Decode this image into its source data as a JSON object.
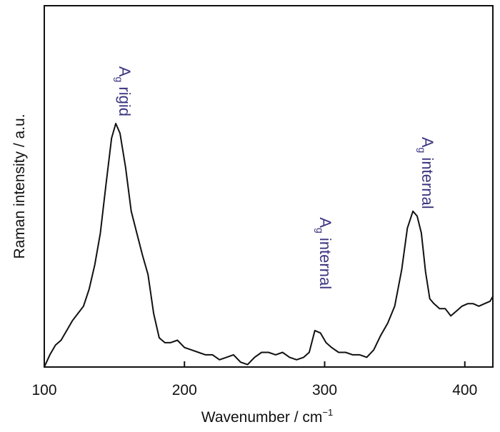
{
  "chart_data": {
    "type": "line",
    "title": "",
    "xlabel": "Wavenumber / cm",
    "xlabel_superscript": "−1",
    "ylabel": "Raman intensity / a.u.",
    "xlim": [
      100,
      420
    ],
    "ylim": [
      0,
      100
    ],
    "y_ticks_labeled": false,
    "grid": false,
    "x_ticks": [
      {
        "value": 100,
        "label": "100"
      },
      {
        "value": 200,
        "label": "200"
      },
      {
        "value": 300,
        "label": "300"
      },
      {
        "value": 400,
        "label": "400"
      }
    ],
    "line_color": "#111111",
    "annotation_color": "#3a3580",
    "annotations": [
      {
        "base": "A",
        "sub": "g",
        "text": " rigid",
        "x": 150,
        "y": 100
      },
      {
        "base": "A",
        "sub": "g",
        "text": " internal",
        "x": 293,
        "y": 29
      },
      {
        "base": "A",
        "sub": "g",
        "text": " internal",
        "x": 366,
        "y": 62
      }
    ],
    "series": [
      {
        "x": [
          100,
          104,
          108,
          112,
          116,
          120,
          124,
          128,
          132,
          136,
          140,
          144,
          148,
          151,
          154,
          158,
          162,
          166,
          170,
          174,
          178,
          182,
          186,
          190,
          195,
          200,
          205,
          210,
          215,
          220,
          225,
          230,
          235,
          240,
          245,
          250,
          255,
          260,
          265,
          270,
          275,
          280,
          285,
          289,
          293,
          297,
          301,
          305,
          310,
          315,
          320,
          325,
          330,
          335,
          340,
          345,
          350,
          355,
          359,
          363,
          366,
          369,
          372,
          375,
          378,
          382,
          386,
          390,
          394,
          398,
          402,
          406,
          410,
          414,
          418,
          420
        ],
        "y": [
          0,
          5,
          9,
          11,
          15,
          19,
          22,
          25,
          32,
          42,
          55,
          75,
          94,
          100,
          96,
          82,
          64,
          55,
          46,
          38,
          22,
          12,
          10,
          10,
          11,
          8,
          7,
          6,
          5,
          5,
          3,
          4,
          5,
          2,
          1,
          4,
          6,
          6,
          5,
          6,
          4,
          3,
          4,
          6,
          15,
          14,
          10,
          8,
          6,
          6,
          5,
          5,
          4,
          7,
          13,
          18,
          25,
          40,
          57,
          64,
          62,
          55,
          39,
          28,
          26,
          24,
          24,
          21,
          23,
          25,
          26,
          26,
          25,
          26,
          27,
          29
        ]
      }
    ]
  }
}
